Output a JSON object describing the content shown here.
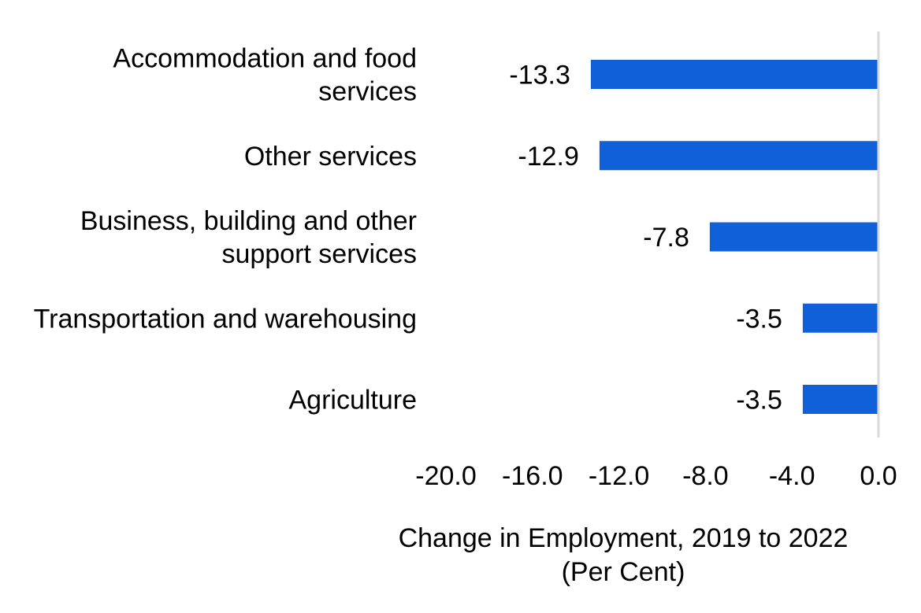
{
  "chart_data": {
    "type": "bar",
    "orientation": "horizontal",
    "categories": [
      [
        "Accommodation and food",
        "services"
      ],
      [
        "Other services"
      ],
      [
        "Business, building and other",
        "support services"
      ],
      [
        "Transportation and warehousing"
      ],
      [
        "Agriculture"
      ]
    ],
    "values": [
      -13.3,
      -12.9,
      -7.8,
      -3.5,
      -3.5
    ],
    "value_labels": [
      "-13.3",
      "-12.9",
      "-7.8",
      "-3.5",
      "-3.5"
    ],
    "xlim": [
      -20,
      0
    ],
    "xticks": [
      -20,
      -16,
      -12,
      -8,
      -4,
      0
    ],
    "xtick_labels": [
      "-20.0",
      "-16.0",
      "-12.0",
      "-8.0",
      "-4.0",
      "0.0"
    ],
    "xlabel": [
      "Change in Employment, 2019 to 2022",
      "(Per Cent)"
    ],
    "title": "",
    "grid": false,
    "bar_color": "#1061d9",
    "axis_color": "#d9d9d9"
  }
}
